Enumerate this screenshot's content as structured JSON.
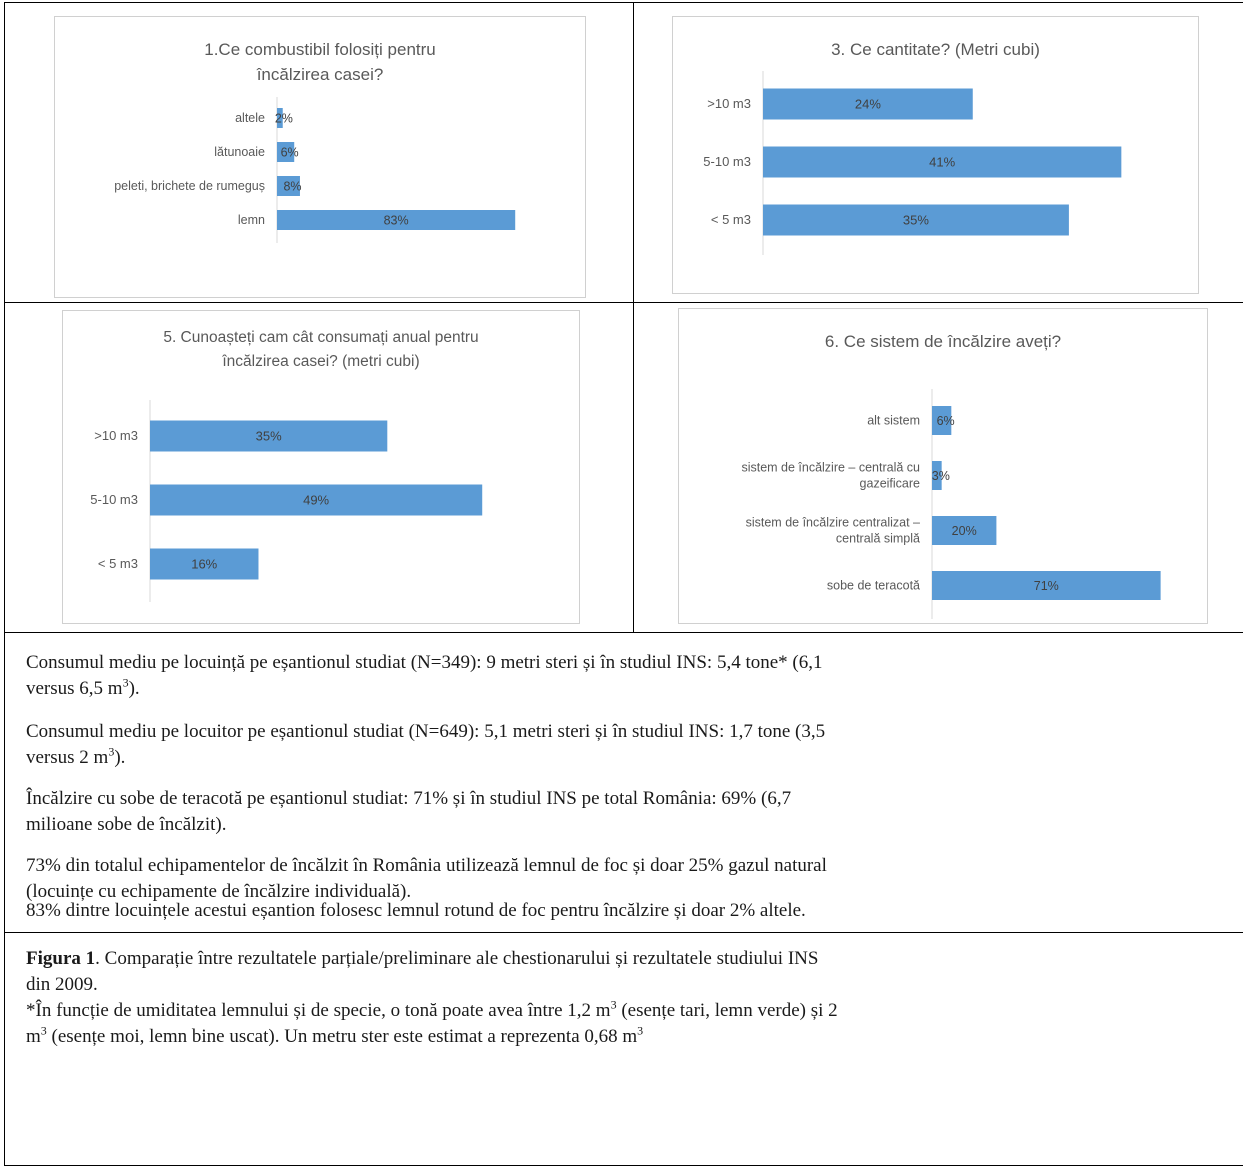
{
  "charts": [
    {
      "id": "c1",
      "title_line1": "1.Ce combustibil folosiți pentru",
      "title_line2": "încălzirea casei?",
      "chart_data": {
        "type": "bar",
        "orientation": "horizontal",
        "categories": [
          "altele",
          "lătunoaie",
          "peleti, brichete de rumeguș",
          "lemn"
        ],
        "values": [
          2,
          6,
          8,
          83
        ],
        "labels": [
          "2%",
          "6%",
          "8%",
          "83%"
        ],
        "unit": "%",
        "color": "#5b9bd5"
      }
    },
    {
      "id": "c3",
      "title_line1": "3. Ce cantitate? (Metri cubi)",
      "title_line2": "",
      "chart_data": {
        "type": "bar",
        "orientation": "horizontal",
        "categories": [
          ">10 m3",
          "5-10 m3",
          "< 5 m3"
        ],
        "values": [
          24,
          41,
          35
        ],
        "labels": [
          "24%",
          "41%",
          "35%"
        ],
        "unit": "%",
        "color": "#5b9bd5"
      }
    },
    {
      "id": "c5",
      "title_line1": "5. Cunoașteți cam cât consumați anual pentru",
      "title_line2": "încălzirea casei? (metri cubi)",
      "chart_data": {
        "type": "bar",
        "orientation": "horizontal",
        "categories": [
          ">10 m3",
          "5-10 m3",
          "< 5 m3"
        ],
        "values": [
          35,
          49,
          16
        ],
        "labels": [
          "35%",
          "49%",
          "16%"
        ],
        "unit": "%",
        "color": "#5b9bd5"
      }
    },
    {
      "id": "c6",
      "title_line1": "6. Ce sistem de încălzire aveți?",
      "title_line2": "",
      "chart_data": {
        "type": "bar",
        "orientation": "horizontal",
        "categories": [
          [
            "alt sistem"
          ],
          [
            "sistem de încălzire – centrală cu",
            "gazeificare"
          ],
          [
            "sistem de încălzire centralizat –",
            "centrală simplă"
          ],
          [
            "sobe de teracotă"
          ]
        ],
        "values": [
          6,
          3,
          20,
          71
        ],
        "labels": [
          "6%",
          "3%",
          "20%",
          "71%"
        ],
        "unit": "%",
        "color": "#5b9bd5"
      }
    }
  ],
  "paragraphs": {
    "p1_a": "Consumul mediu pe locuință pe eșantionul studiat (N=349): 9 metri steri și în studiul INS: 5,4 tone* (6,1",
    "p1_b": "versus 6,5 m",
    "p1_b_sup": "3",
    "p1_b_end": ").",
    "p2_a": "Consumul mediu pe locuitor pe eșantionul studiat (N=649): 5,1 metri steri și în studiul INS: 1,7 tone (3,5",
    "p2_b": "versus 2 m",
    "p2_b_sup": "3",
    "p2_b_end": ").",
    "p3_a": "Încălzire cu sobe de teracotă pe eșantionul studiat: 71% și în studiul INS pe total România: 69% (6,7",
    "p3_b": "milioane sobe de încălzit).",
    "p4_a": "73% din totalul echipamentelor de încălzit în România utilizează lemnul de foc și doar 25% gazul natural",
    "p4_b": "(locuințe cu echipamente de încălzire individuală).",
    "p5": "83% dintre locuințele acestui eșantion folosesc lemnul rotund de foc pentru încălzire și doar 2% altele."
  },
  "caption": {
    "label": "Figura 1",
    "text_a": ". Comparație între rezultatele parțiale/preliminare ale chestionarului și rezultatele studiului INS",
    "text_b": "din 2009.",
    "note_a": "*În funcție de umiditatea lemnului și de specie, o tonă poate avea între 1,2 m",
    "note_sup1": "3",
    "note_b": " (esențe tari, lemn verde) și 2",
    "note_c": "m",
    "note_sup2": "3",
    "note_d": " (esențe moi, lemn bine uscat). Un metru ster este estimat a reprezenta 0,68 m",
    "note_sup3": "3"
  }
}
